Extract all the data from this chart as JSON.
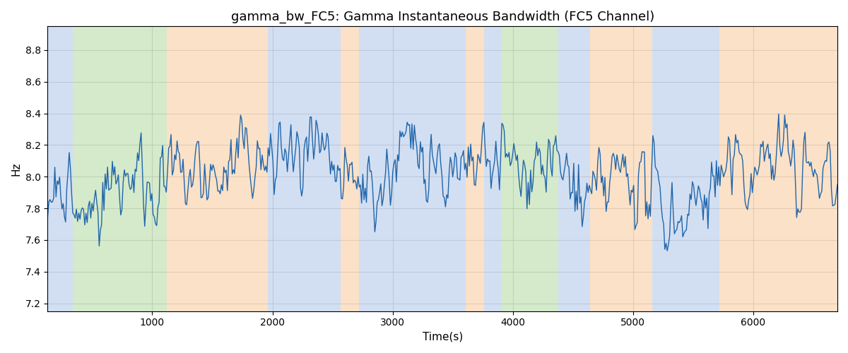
{
  "title": "gamma_bw_FC5: Gamma Instantaneous Bandwidth (FC5 Channel)",
  "xlabel": "Time(s)",
  "ylabel": "Hz",
  "ylim": [
    7.15,
    8.95
  ],
  "xlim": [
    130,
    6700
  ],
  "line_color": "#2266aa",
  "line_width": 1.0,
  "background_color": "#ffffff",
  "bands": [
    {
      "start": 130,
      "end": 340,
      "color": "#aec6e8",
      "alpha": 0.55
    },
    {
      "start": 340,
      "end": 1120,
      "color": "#b2d9a0",
      "alpha": 0.55
    },
    {
      "start": 1120,
      "end": 1960,
      "color": "#f8c99a",
      "alpha": 0.55
    },
    {
      "start": 1960,
      "end": 2570,
      "color": "#aec6e8",
      "alpha": 0.55
    },
    {
      "start": 2570,
      "end": 2720,
      "color": "#f8c99a",
      "alpha": 0.55
    },
    {
      "start": 2720,
      "end": 3610,
      "color": "#aec6e8",
      "alpha": 0.55
    },
    {
      "start": 3610,
      "end": 3760,
      "color": "#f8c99a",
      "alpha": 0.55
    },
    {
      "start": 3760,
      "end": 3910,
      "color": "#aec6e8",
      "alpha": 0.55
    },
    {
      "start": 3910,
      "end": 4380,
      "color": "#b2d9a0",
      "alpha": 0.55
    },
    {
      "start": 4380,
      "end": 4640,
      "color": "#aec6e8",
      "alpha": 0.55
    },
    {
      "start": 4640,
      "end": 5160,
      "color": "#f8c99a",
      "alpha": 0.55
    },
    {
      "start": 5160,
      "end": 5720,
      "color": "#aec6e8",
      "alpha": 0.55
    },
    {
      "start": 5720,
      "end": 5910,
      "color": "#f8c99a",
      "alpha": 0.55
    },
    {
      "start": 5910,
      "end": 6700,
      "color": "#f8c99a",
      "alpha": 0.55
    }
  ],
  "xticks": [
    1000,
    2000,
    3000,
    4000,
    5000,
    6000
  ],
  "yticks": [
    7.2,
    7.4,
    7.6,
    7.8,
    8.0,
    8.2,
    8.4,
    8.6,
    8.8
  ],
  "grid_color": "#aaaaaa",
  "grid_alpha": 0.6,
  "title_fontsize": 13,
  "label_fontsize": 11,
  "tick_fontsize": 10,
  "seed": 42,
  "n_points": 660,
  "mean": 8.0,
  "slow_std": 0.12,
  "fast_std": 0.22,
  "slow_smooth": 40,
  "fast_smooth": 3
}
